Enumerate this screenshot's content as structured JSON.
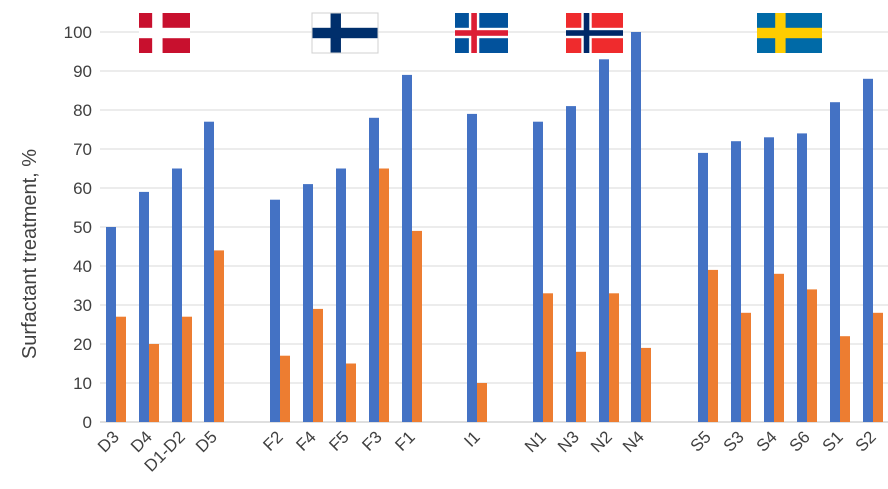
{
  "chart_data": {
    "type": "bar",
    "title": "",
    "xlabel": "",
    "ylabel": "Surfactant treatment, %",
    "ylim": [
      0,
      100
    ],
    "yticks": [
      0,
      10,
      20,
      30,
      40,
      50,
      60,
      70,
      80,
      90,
      100
    ],
    "grid": true,
    "categories": [
      "D3",
      "D4",
      "D1-D2",
      "D5",
      "F2",
      "F4",
      "F5",
      "F3",
      "F1",
      "I1",
      "N1",
      "N3",
      "N2",
      "N4",
      "S5",
      "S3",
      "S4",
      "S6",
      "S1",
      "S2"
    ],
    "groups": [
      {
        "flag": "denmark-flag",
        "categories": [
          "D3",
          "D4",
          "D1-D2",
          "D5"
        ]
      },
      {
        "flag": "finland-flag",
        "categories": [
          "F2",
          "F4",
          "F5",
          "F3",
          "F1"
        ]
      },
      {
        "flag": "iceland-flag",
        "categories": [
          "I1"
        ]
      },
      {
        "flag": "norway-flag",
        "categories": [
          "N1",
          "N3",
          "N2",
          "N4"
        ]
      },
      {
        "flag": "sweden-flag",
        "categories": [
          "S5",
          "S3",
          "S4",
          "S6",
          "S1",
          "S2"
        ]
      }
    ],
    "series": [
      {
        "color": "#4472c4",
        "values": [
          50,
          59,
          65,
          77,
          57,
          61,
          65,
          78,
          89,
          79,
          77,
          81,
          93,
          100,
          69,
          72,
          73,
          74,
          82,
          88
        ]
      },
      {
        "color": "#ed7d31",
        "values": [
          27,
          20,
          27,
          44,
          17,
          29,
          15,
          65,
          49,
          10,
          33,
          18,
          33,
          19,
          39,
          28,
          38,
          34,
          22,
          28
        ]
      }
    ]
  }
}
